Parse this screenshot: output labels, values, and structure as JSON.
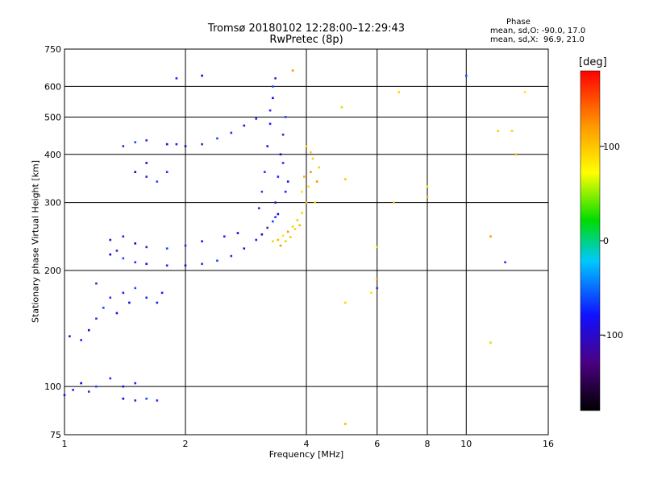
{
  "header": {
    "title_line1": "Tromsø 20180102 12:28:00–12:29:43",
    "title_line2": "RwPretec (8p)",
    "phase_title": "Phase",
    "phase_line1": "mean, sd,O: -90.0, 17.0",
    "phase_line2": "mean, sd,X:  96.9, 21.0"
  },
  "chart_data": {
    "type": "scatter",
    "xlabel": "Frequency [MHz]",
    "ylabel": "Stationary phase Virtual Height [km]",
    "x_scale": "log",
    "y_scale": "log",
    "xlim": [
      1,
      16
    ],
    "ylim": [
      75,
      750
    ],
    "x_ticks": [
      1,
      2,
      4,
      6,
      8,
      10,
      16
    ],
    "y_ticks": [
      75,
      100,
      200,
      300,
      400,
      500,
      600,
      750
    ],
    "grid": true,
    "colorbar": {
      "label": "[deg]",
      "range": [
        -180,
        180
      ],
      "ticks": [
        100,
        0,
        -100
      ],
      "colors": [
        "#000000",
        "#4b0082",
        "#1010ff",
        "#00c8ff",
        "#00dc00",
        "#ffff00",
        "#ff9600",
        "#ff0000"
      ]
    },
    "series": [
      {
        "mode": "O",
        "points": [
          [
            1.0,
            95
          ],
          [
            1.05,
            98
          ],
          [
            1.1,
            102
          ],
          [
            1.15,
            97
          ],
          [
            1.2,
            100
          ],
          [
            1.3,
            105
          ],
          [
            1.4,
            100
          ],
          [
            1.5,
            102
          ],
          [
            1.4,
            93
          ],
          [
            1.5,
            92
          ],
          [
            1.6,
            93
          ],
          [
            1.7,
            92
          ],
          [
            1.03,
            135
          ],
          [
            1.1,
            132
          ],
          [
            1.15,
            140
          ],
          [
            1.2,
            150
          ],
          [
            1.25,
            160
          ],
          [
            1.3,
            170
          ],
          [
            1.35,
            155
          ],
          [
            1.4,
            175
          ],
          [
            1.45,
            165
          ],
          [
            1.2,
            185
          ],
          [
            1.5,
            180
          ],
          [
            1.6,
            170
          ],
          [
            1.7,
            165
          ],
          [
            1.75,
            175
          ],
          [
            1.3,
            220
          ],
          [
            1.35,
            225
          ],
          [
            1.4,
            215
          ],
          [
            1.5,
            210
          ],
          [
            1.6,
            208
          ],
          [
            1.8,
            206
          ],
          [
            2.0,
            206
          ],
          [
            2.2,
            208
          ],
          [
            2.4,
            212
          ],
          [
            2.6,
            218
          ],
          [
            2.8,
            228
          ],
          [
            3.0,
            240
          ],
          [
            3.1,
            248
          ],
          [
            3.2,
            258
          ],
          [
            3.3,
            268
          ],
          [
            3.35,
            275
          ],
          [
            1.3,
            240
          ],
          [
            1.4,
            245
          ],
          [
            1.5,
            235
          ],
          [
            1.6,
            230
          ],
          [
            1.8,
            228
          ],
          [
            2.0,
            232
          ],
          [
            2.2,
            238
          ],
          [
            2.5,
            245
          ],
          [
            2.7,
            250
          ],
          [
            3.05,
            290
          ],
          [
            3.1,
            320
          ],
          [
            3.15,
            360
          ],
          [
            3.2,
            420
          ],
          [
            3.25,
            480
          ],
          [
            3.3,
            560
          ],
          [
            3.35,
            630
          ],
          [
            3.3,
            600
          ],
          [
            3.25,
            520
          ],
          [
            3.35,
            300
          ],
          [
            3.4,
            350
          ],
          [
            3.45,
            400
          ],
          [
            3.5,
            450
          ],
          [
            3.55,
            500
          ],
          [
            3.5,
            380
          ],
          [
            3.6,
            340
          ],
          [
            3.55,
            320
          ],
          [
            3.4,
            280
          ],
          [
            1.4,
            420
          ],
          [
            1.5,
            430
          ],
          [
            1.6,
            435
          ],
          [
            1.8,
            425
          ],
          [
            1.9,
            425
          ],
          [
            2.0,
            420
          ],
          [
            2.2,
            425
          ],
          [
            2.4,
            440
          ],
          [
            2.6,
            455
          ],
          [
            2.8,
            475
          ],
          [
            3.0,
            495
          ],
          [
            1.5,
            360
          ],
          [
            1.6,
            350
          ],
          [
            1.7,
            340
          ],
          [
            1.8,
            360
          ],
          [
            1.6,
            380
          ],
          [
            1.9,
            630
          ],
          [
            2.2,
            640
          ],
          [
            6.0,
            180
          ],
          [
            10.0,
            640
          ],
          [
            12.5,
            210
          ]
        ]
      },
      {
        "mode": "X",
        "points": [
          [
            3.3,
            238
          ],
          [
            3.4,
            240
          ],
          [
            3.5,
            246
          ],
          [
            3.6,
            252
          ],
          [
            3.7,
            260
          ],
          [
            3.8,
            270
          ],
          [
            3.9,
            282
          ],
          [
            4.0,
            300
          ],
          [
            4.05,
            330
          ],
          [
            4.1,
            360
          ],
          [
            4.15,
            390
          ],
          [
            4.1,
            405
          ],
          [
            4.0,
            420
          ],
          [
            3.95,
            350
          ],
          [
            3.9,
            320
          ],
          [
            3.45,
            232
          ],
          [
            3.55,
            238
          ],
          [
            3.65,
            244
          ],
          [
            3.75,
            256
          ],
          [
            3.85,
            262
          ],
          [
            4.2,
            300
          ],
          [
            4.25,
            340
          ],
          [
            4.3,
            370
          ],
          [
            5.0,
            345
          ],
          [
            5.0,
            165
          ],
          [
            5.0,
            80
          ],
          [
            5.8,
            175
          ],
          [
            6.0,
            190
          ],
          [
            6.0,
            230
          ],
          [
            6.6,
            300
          ],
          [
            6.8,
            580
          ],
          [
            8.0,
            310
          ],
          [
            8.0,
            330
          ],
          [
            11.5,
            245
          ],
          [
            11.5,
            130
          ],
          [
            12.0,
            460
          ],
          [
            13.0,
            460
          ],
          [
            13.3,
            400
          ],
          [
            14.0,
            580
          ],
          [
            3.7,
            660
          ],
          [
            4.9,
            530
          ]
        ]
      }
    ]
  }
}
